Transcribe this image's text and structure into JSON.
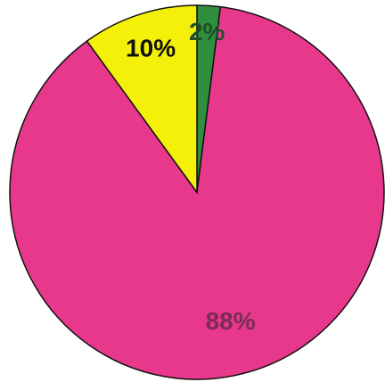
{
  "chart_data": {
    "type": "pie",
    "categories": [
      null,
      null,
      null
    ],
    "values": [
      2,
      88,
      10
    ],
    "value_labels": [
      "2%",
      "88%",
      "10%"
    ],
    "colors": [
      "#2f8f3f",
      "#e8388c",
      "#f4f00a"
    ],
    "label_colors": [
      "#1f4f2a",
      "#7a2c55",
      "#111111"
    ]
  }
}
